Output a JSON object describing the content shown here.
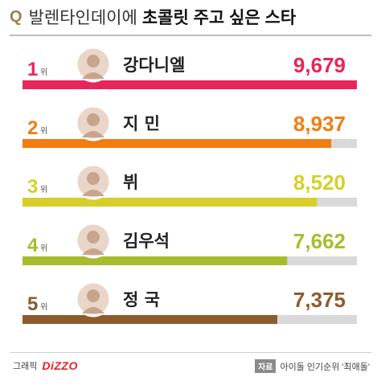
{
  "header": {
    "q_mark": "Q",
    "title_part1": "발렌타인데이에",
    "title_part2": "초콜릿 주고 싶은 스타"
  },
  "chart_data": {
    "type": "bar",
    "rank_unit": "위",
    "ranks": [
      "1",
      "2",
      "3",
      "4",
      "5"
    ],
    "categories": [
      "강다니엘",
      "지 민",
      "뷔",
      "김우석",
      "정 국"
    ],
    "values": [
      9679,
      8937,
      8520,
      7662,
      7375
    ],
    "value_labels": [
      "9,679",
      "8,937",
      "8,520",
      "7,662",
      "7,375"
    ],
    "colors": [
      "#e8265a",
      "#ef7d12",
      "#d6cf2a",
      "#a9bc2e",
      "#8d5b2c"
    ],
    "name_colors": [
      "#e8265a",
      "#222222",
      "#222222",
      "#222222",
      "#222222"
    ],
    "track_color": "#d9d9d9",
    "xlim": [
      0,
      9679
    ]
  },
  "footer": {
    "graphic_label": "그래픽",
    "brand": "DiZZO",
    "source_tag": "자료",
    "source_text": "아이돌 인기순위 '최애돌'"
  }
}
